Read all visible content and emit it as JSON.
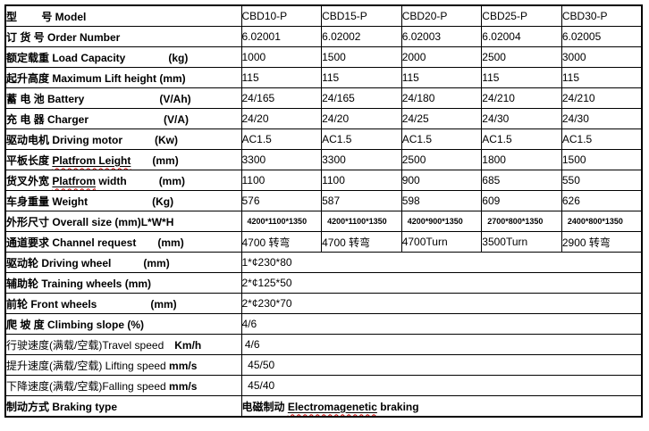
{
  "colors": {
    "border": "#000000",
    "text": "#000000",
    "spellcheck_squiggle": "#cc0000",
    "background": "#ffffff"
  },
  "table": {
    "rows": [
      {
        "id": "model",
        "label": [
          {
            "t": "型　　 号 Model"
          }
        ],
        "values": [
          "CBD10-P",
          "CBD15-P",
          "CBD20-P",
          "CBD25-P",
          "CBD30-P"
        ]
      },
      {
        "id": "order-number",
        "label": [
          {
            "t": "订 货 号 Order Number"
          }
        ],
        "values": [
          "6.02001",
          "6.02002",
          "6.02003",
          "6.02004",
          "6.02005"
        ]
      },
      {
        "id": "load-capacity",
        "label": [
          {
            "t": "额定载重 Load Capacity　　　　(kg)"
          }
        ],
        "values": [
          "1000",
          "1500",
          "2000",
          "2500",
          "3000"
        ]
      },
      {
        "id": "max-lift-height",
        "label": [
          {
            "t": "起升高度 Maximum Lift height (mm)"
          }
        ],
        "values": [
          "115",
          "115",
          "115",
          "115",
          "115"
        ]
      },
      {
        "id": "battery",
        "label": [
          {
            "t": "蓄 电 池 Battery　　　　　　　(V/Ah)"
          }
        ],
        "values": [
          "24/165",
          "24/165",
          "24/180",
          "24/210",
          "24/210"
        ]
      },
      {
        "id": "charger",
        "label": [
          {
            "t": "充 电 器 Charger　　　　　　　(V/A)"
          }
        ],
        "values": [
          "24/20",
          "24/20",
          "24/25",
          "24/30",
          "24/30"
        ]
      },
      {
        "id": "driving-motor",
        "label": [
          {
            "t": "驱动电机 Driving motor　　　(Kw)"
          }
        ],
        "values": [
          "AC1.5",
          "AC1.5",
          "AC1.5",
          "AC1.5",
          "AC1.5"
        ]
      },
      {
        "id": "platform-length",
        "label": [
          {
            "t": "平板长度 "
          },
          {
            "t": "Platfrom Leight",
            "u": true
          },
          {
            "t": "　　(mm)"
          }
        ],
        "values": [
          "3300",
          "3300",
          "2500",
          "1800",
          "1500"
        ]
      },
      {
        "id": "platform-width",
        "label": [
          {
            "t": "货叉外宽 "
          },
          {
            "t": "Platfrom",
            "u": true
          },
          {
            "t": " width　　　(mm)"
          }
        ],
        "values": [
          "1100",
          "1100",
          "900",
          "685",
          "550"
        ]
      },
      {
        "id": "weight",
        "label": [
          {
            "t": "车身重量 Weight　　　　　　(Kg)"
          }
        ],
        "values": [
          "576",
          "587",
          "598",
          "609",
          "626"
        ]
      },
      {
        "id": "overall-size",
        "label": [
          {
            "t": "外形尺寸 Overall size (mm)L*W*H"
          }
        ],
        "small": true,
        "values": [
          "4200*1100*1350",
          "4200*1100*1350",
          "4200*900*1350",
          "2700*800*1350",
          "2400*800*1350"
        ]
      },
      {
        "id": "channel-request",
        "label": [
          {
            "t": "通道要求 Channel request　　(mm)"
          }
        ],
        "values": [
          "4700 转弯",
          "4700 转弯",
          "4700Turn",
          "3500Turn",
          "2900 转弯"
        ]
      },
      {
        "id": "driving-wheel",
        "label": [
          {
            "t": "驱动轮 Driving wheel　　　(mm)"
          }
        ],
        "span_value": [
          {
            "t": "1*¢230*80"
          }
        ]
      },
      {
        "id": "training-wheels",
        "label": [
          {
            "t": "辅助轮 Training wheels (mm)"
          }
        ],
        "span_value": [
          {
            "t": "2*¢125*50"
          }
        ]
      },
      {
        "id": "front-wheels",
        "label": [
          {
            "t": "前轮 Front wheels　　　　　(mm)"
          }
        ],
        "span_value": [
          {
            "t": "2*¢230*70"
          }
        ]
      },
      {
        "id": "climbing-slope",
        "label": [
          {
            "t": "爬 坡 度 Climbing slope (%)"
          }
        ],
        "span_value": [
          {
            "t": "4/6"
          }
        ]
      },
      {
        "id": "travel-speed",
        "label": [
          {
            "t": "行驶速度(满载/空载)Travel speed",
            "b": false
          },
          {
            "t": "　Km/h"
          }
        ],
        "span_value": [
          {
            "t": " 4/6"
          }
        ]
      },
      {
        "id": "lifting-speed",
        "label": [
          {
            "t": "提升速度(满载/空载) Lifting speed ",
            "b": false
          },
          {
            "t": "mm/s"
          }
        ],
        "span_value": [
          {
            "t": "  45/50"
          }
        ]
      },
      {
        "id": "falling-speed",
        "label": [
          {
            "t": "下降速度(满载/空载)Falling speed ",
            "b": false
          },
          {
            "t": "mm/s"
          }
        ],
        "span_value": [
          {
            "t": "  45/40"
          }
        ]
      },
      {
        "id": "braking-type",
        "label": [
          {
            "t": "制动方式 Braking type"
          }
        ],
        "span_bold": true,
        "span_value": [
          {
            "t": "电磁制动 "
          },
          {
            "t": "Electromagenetic",
            "u": true
          },
          {
            "t": " braking"
          }
        ]
      }
    ]
  }
}
